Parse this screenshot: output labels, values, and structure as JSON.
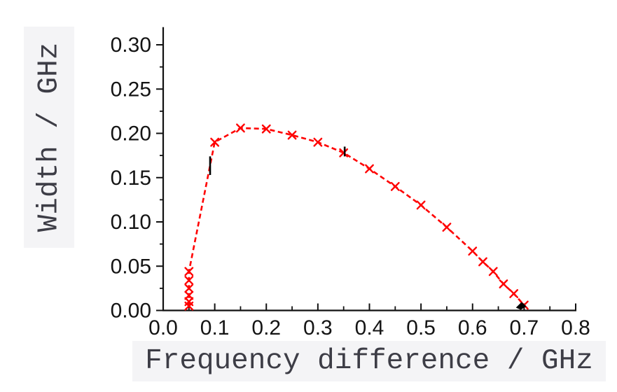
{
  "chart_data": {
    "type": "line",
    "title": "",
    "xlabel": "Frequency difference / GHz",
    "ylabel": "Width / GHz",
    "xlim": [
      0.0,
      0.8
    ],
    "ylim": [
      0.0,
      0.32
    ],
    "x_tick_labels": [
      "0.0",
      "0.1",
      "0.2",
      "0.3",
      "0.4",
      "0.5",
      "0.6",
      "0.7",
      "0.8"
    ],
    "y_tick_labels": [
      "0.00",
      "0.05",
      "0.10",
      "0.15",
      "0.20",
      "0.25",
      "0.30"
    ],
    "x_minor_step": 0.05,
    "y_minor_step": 0.025,
    "grid": false,
    "legend_position": "none",
    "axes_style": "left-and-bottom-only, x ticks inward, y ticks outward",
    "series": [
      {
        "name": "width-vs-frequency-difference",
        "color": "#ff0000",
        "line_style": "dashed",
        "marker": "x",
        "points": [
          [
            0.05,
            0.005
          ],
          [
            0.05,
            0.01
          ],
          [
            0.05,
            0.017
          ],
          [
            0.05,
            0.025
          ],
          [
            0.05,
            0.034
          ],
          [
            0.05,
            0.044
          ],
          [
            0.1,
            0.19
          ],
          [
            0.15,
            0.206
          ],
          [
            0.2,
            0.205
          ],
          [
            0.25,
            0.198
          ],
          [
            0.3,
            0.19
          ],
          [
            0.35,
            0.178
          ],
          [
            0.4,
            0.16
          ],
          [
            0.45,
            0.14
          ],
          [
            0.5,
            0.119
          ],
          [
            0.55,
            0.094
          ],
          [
            0.6,
            0.067
          ],
          [
            0.62,
            0.055
          ],
          [
            0.64,
            0.044
          ],
          [
            0.66,
            0.03
          ],
          [
            0.68,
            0.019
          ],
          [
            0.7,
            0.006
          ]
        ]
      }
    ],
    "annotations": [
      {
        "kind": "black-dash",
        "x": 0.091,
        "y_from": 0.153,
        "y_to": 0.174
      },
      {
        "kind": "black-dash",
        "x": 0.352,
        "y_from": 0.174,
        "y_to": 0.185
      },
      {
        "kind": "black-endpoint-marker",
        "x": 0.695,
        "y": 0.004
      }
    ],
    "colors": {
      "series": "#ff0000",
      "axis": "#111111",
      "tick_label": "#141414",
      "axis_title_text": "#3d3d46",
      "axis_title_bg": "#f4f4f6"
    }
  }
}
